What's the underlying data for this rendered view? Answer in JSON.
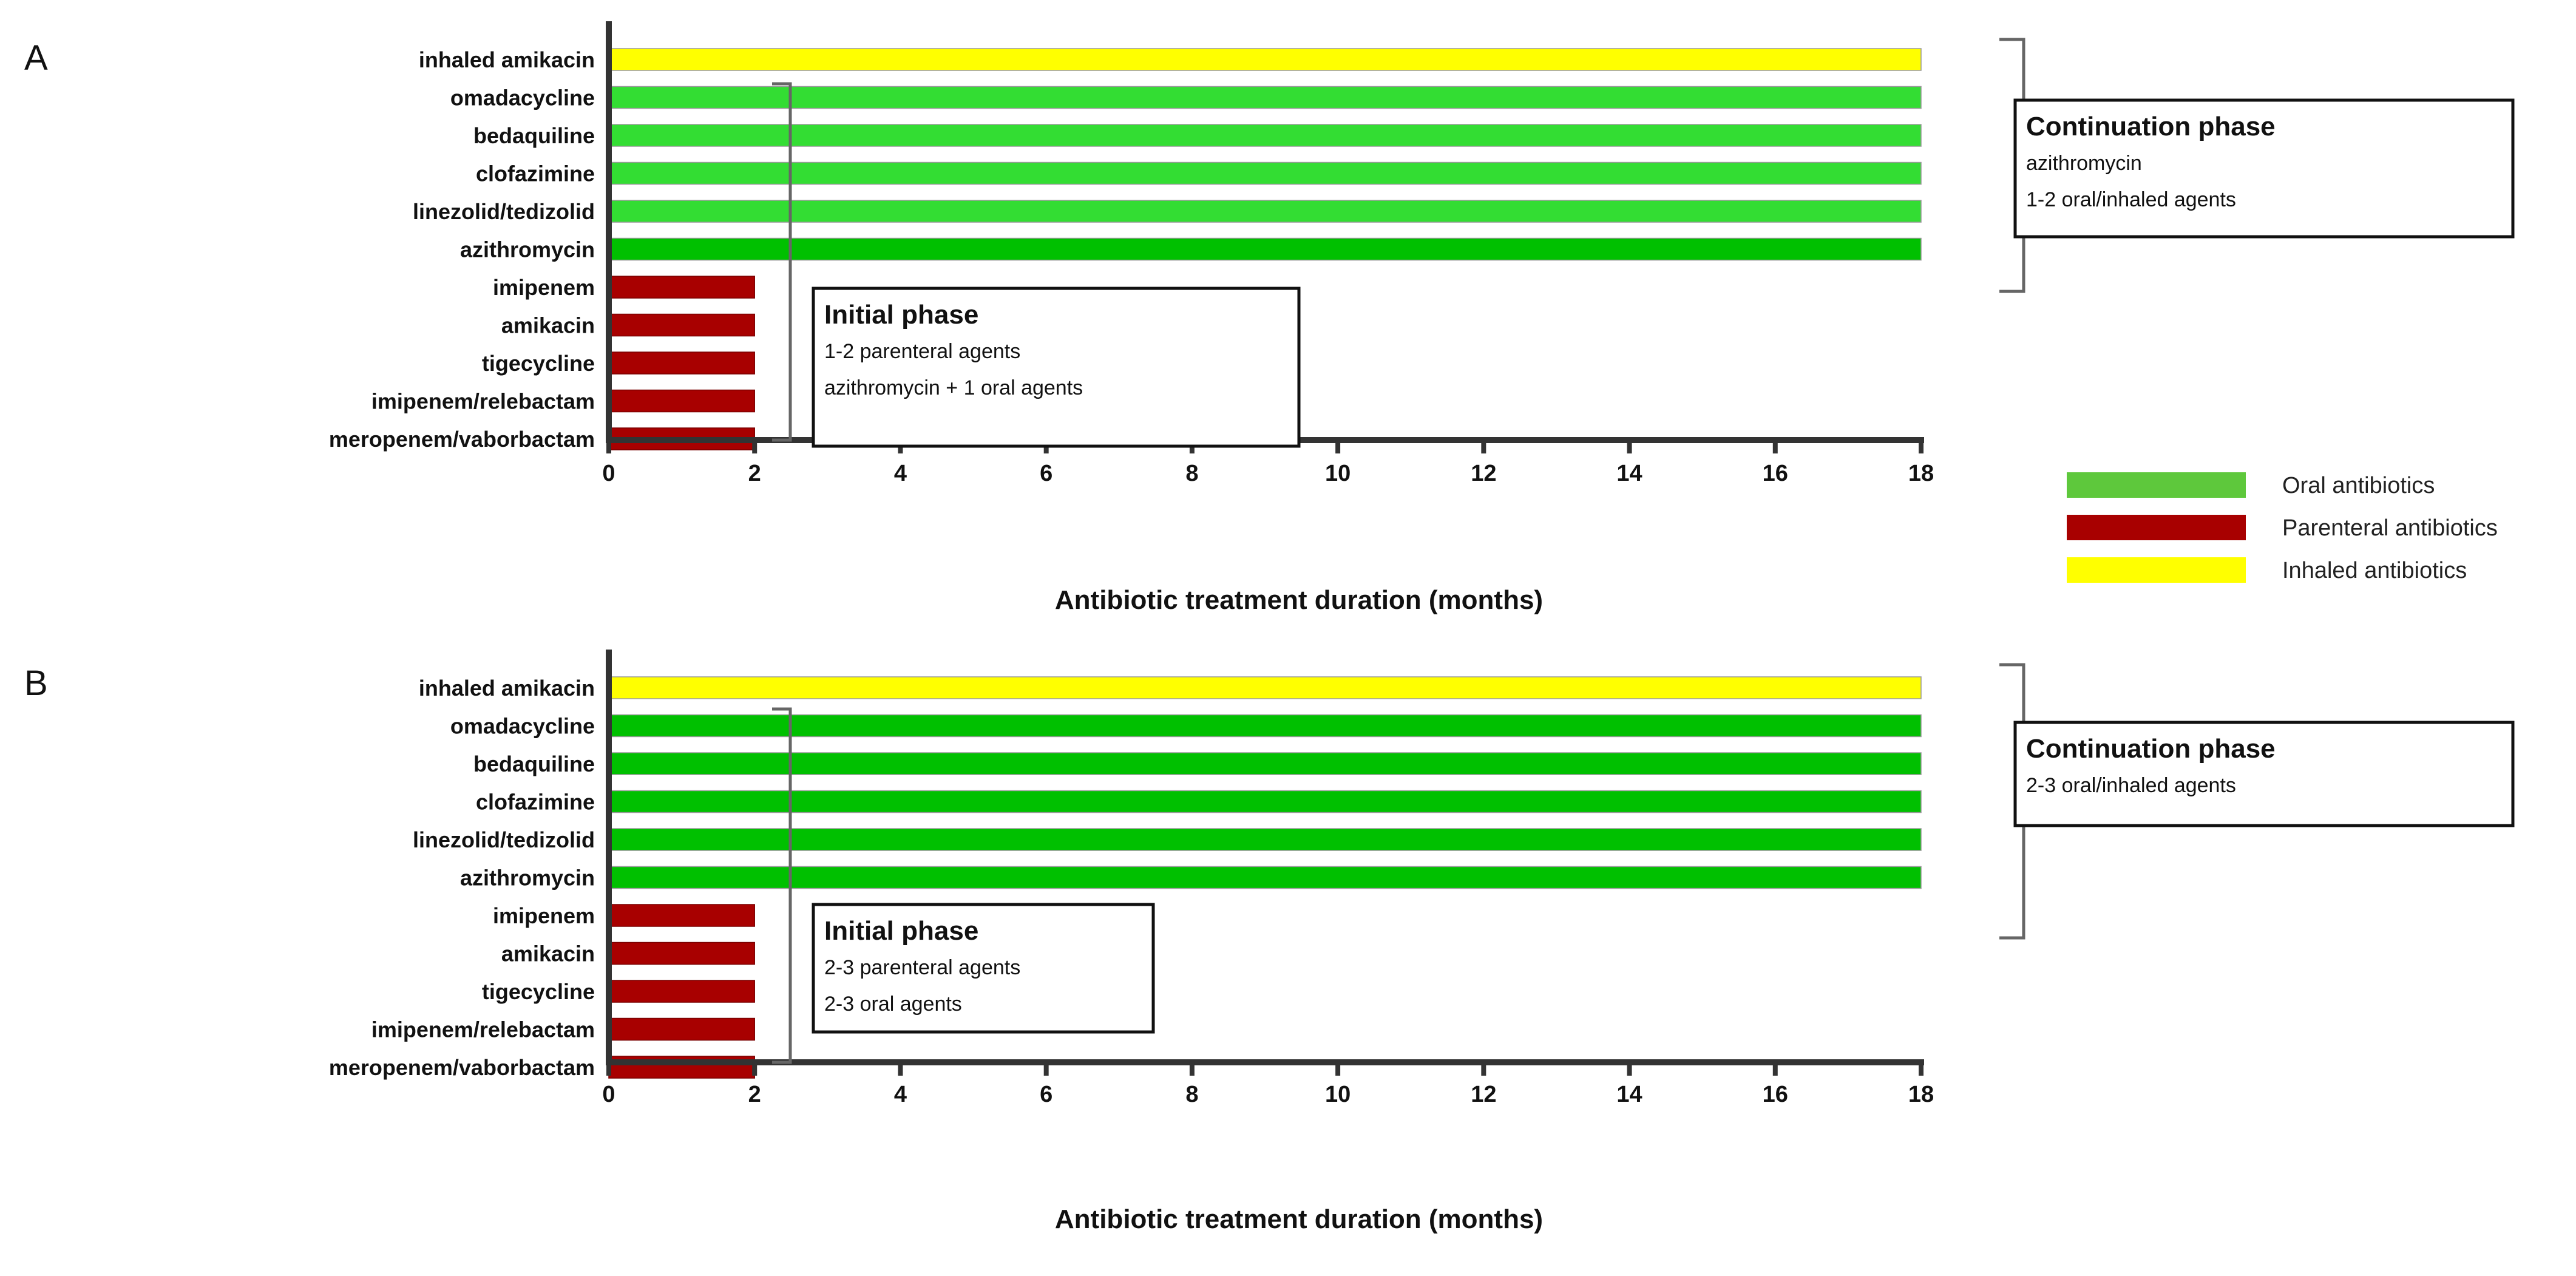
{
  "chart_data": [
    {
      "panel": "A",
      "type": "bar",
      "orientation": "horizontal",
      "xlabel": "Antibiotic treatment duration (months)",
      "xlim": [
        0,
        18
      ],
      "xticks": [
        0,
        2,
        4,
        6,
        8,
        10,
        12,
        14,
        16,
        18
      ],
      "categories": [
        "inhaled amikacin",
        "omadacycline",
        "bedaquiline",
        "clofazimine",
        "linezolid/tedizolid",
        "azithromycin",
        "imipenem",
        "amikacin",
        "tigecycline",
        "imipenem/relebactam",
        "meropenem/vaborbactam"
      ],
      "values": [
        18,
        18,
        18,
        18,
        18,
        18,
        2,
        2,
        2,
        2,
        2
      ],
      "groups": [
        "inhaled",
        "oral-light",
        "oral-light",
        "oral-light",
        "oral-light",
        "oral",
        "parenteral",
        "parenteral",
        "parenteral",
        "parenteral",
        "parenteral"
      ],
      "annotations": {
        "initial": {
          "title": "Initial phase",
          "lines": [
            "1-2 parenteral agents",
            "azithromycin + 1 oral agents"
          ]
        },
        "continuation": {
          "title": "Continuation phase",
          "lines": [
            "azithromycin",
            "1-2 oral/inhaled agents"
          ]
        }
      }
    },
    {
      "panel": "B",
      "type": "bar",
      "orientation": "horizontal",
      "xlabel": "Antibiotic treatment duration (months)",
      "xlim": [
        0,
        18
      ],
      "xticks": [
        0,
        2,
        4,
        6,
        8,
        10,
        12,
        14,
        16,
        18
      ],
      "categories": [
        "inhaled amikacin",
        "omadacycline",
        "bedaquiline",
        "clofazimine",
        "linezolid/tedizolid",
        "azithromycin",
        "imipenem",
        "amikacin",
        "tigecycline",
        "imipenem/relebactam",
        "meropenem/vaborbactam"
      ],
      "values": [
        18,
        18,
        18,
        18,
        18,
        18,
        2,
        2,
        2,
        2,
        2
      ],
      "groups": [
        "inhaled",
        "oral",
        "oral",
        "oral",
        "oral",
        "oral",
        "parenteral",
        "parenteral",
        "parenteral",
        "parenteral",
        "parenteral"
      ],
      "annotations": {
        "initial": {
          "title": "Initial phase",
          "lines": [
            "2-3 parenteral agents",
            "2-3 oral agents"
          ]
        },
        "continuation": {
          "title": "Continuation phase",
          "lines": [
            "2-3 oral/inhaled agents"
          ]
        }
      }
    }
  ],
  "legend": {
    "placement": "right",
    "entries": [
      {
        "label": "Oral antibiotics",
        "color": "#5ec83c"
      },
      {
        "label": "Parenteral antibiotics",
        "color": "#a80000"
      },
      {
        "label": "Inhaled antibiotics",
        "color": "#ffff00"
      }
    ]
  },
  "colors": {
    "inhaled": "#ffff00",
    "oral": "#00c000",
    "oral-light": "#33dd33",
    "parenteral": "#a80000",
    "axis": "#333333"
  }
}
